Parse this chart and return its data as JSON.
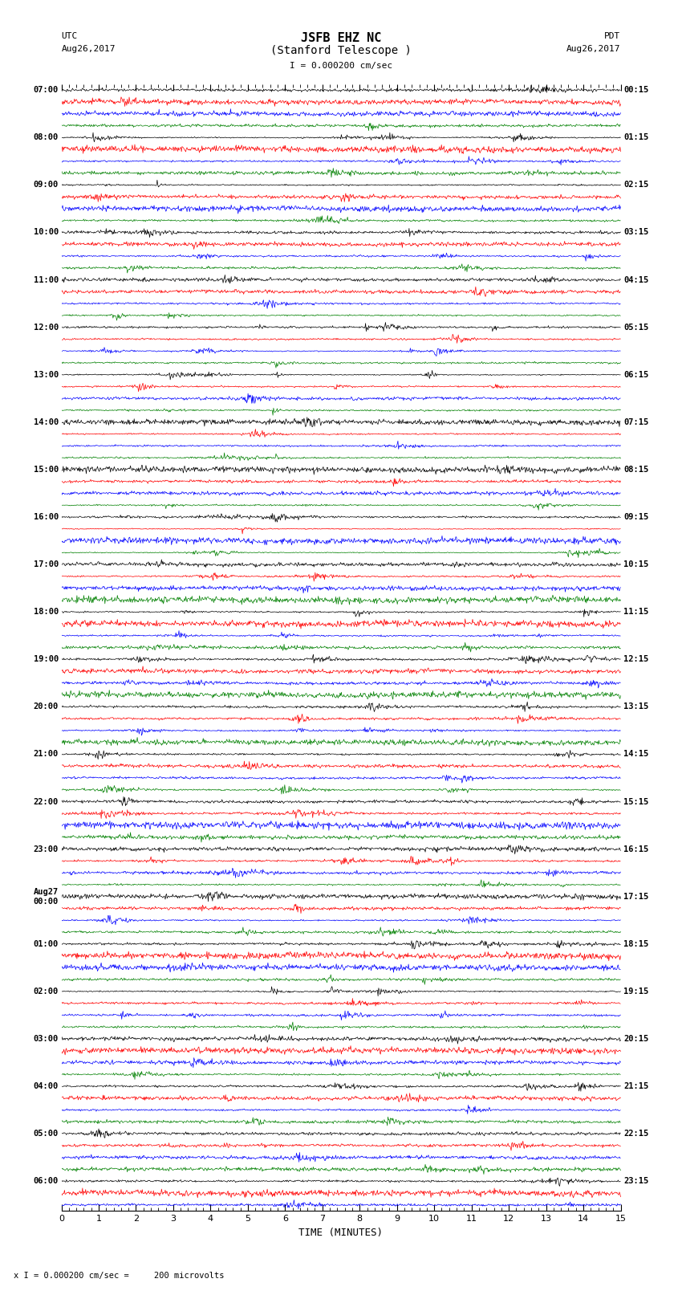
{
  "title_line1": "JSFB EHZ NC",
  "title_line2": "(Stanford Telescope )",
  "scale_label": "I = 0.000200 cm/sec",
  "left_header_line1": "UTC",
  "left_header_line2": "Aug26,2017",
  "right_header_line1": "PDT",
  "right_header_line2": "Aug26,2017",
  "xlabel": "TIME (MINUTES)",
  "bottom_note": "x I = 0.000200 cm/sec =     200 microvolts",
  "xlim": [
    0,
    15
  ],
  "background_color": "#ffffff",
  "trace_colors": [
    "black",
    "red",
    "blue",
    "green"
  ],
  "line_width": 0.5,
  "fig_width": 8.5,
  "fig_height": 16.13,
  "dpi": 100,
  "left_times": [
    "07:00",
    "",
    "",
    "",
    "08:00",
    "",
    "",
    "",
    "09:00",
    "",
    "",
    "",
    "10:00",
    "",
    "",
    "",
    "11:00",
    "",
    "",
    "",
    "12:00",
    "",
    "",
    "",
    "13:00",
    "",
    "",
    "",
    "14:00",
    "",
    "",
    "",
    "15:00",
    "",
    "",
    "",
    "16:00",
    "",
    "",
    "",
    "17:00",
    "",
    "",
    "",
    "18:00",
    "",
    "",
    "",
    "19:00",
    "",
    "",
    "",
    "20:00",
    "",
    "",
    "",
    "21:00",
    "",
    "",
    "",
    "22:00",
    "",
    "",
    "",
    "23:00",
    "",
    "",
    "",
    "Aug27\n00:00",
    "",
    "",
    "",
    "01:00",
    "",
    "",
    "",
    "02:00",
    "",
    "",
    "",
    "03:00",
    "",
    "",
    "",
    "04:00",
    "",
    "",
    "",
    "05:00",
    "",
    "",
    "",
    "06:00",
    "",
    ""
  ],
  "right_times": [
    "00:15",
    "",
    "",
    "",
    "01:15",
    "",
    "",
    "",
    "02:15",
    "",
    "",
    "",
    "03:15",
    "",
    "",
    "",
    "04:15",
    "",
    "",
    "",
    "05:15",
    "",
    "",
    "",
    "06:15",
    "",
    "",
    "",
    "07:15",
    "",
    "",
    "",
    "08:15",
    "",
    "",
    "",
    "09:15",
    "",
    "",
    "",
    "10:15",
    "",
    "",
    "",
    "11:15",
    "",
    "",
    "",
    "12:15",
    "",
    "",
    "",
    "13:15",
    "",
    "",
    "",
    "14:15",
    "",
    "",
    "",
    "15:15",
    "",
    "",
    "",
    "16:15",
    "",
    "",
    "",
    "17:15",
    "",
    "",
    "",
    "18:15",
    "",
    "",
    "",
    "19:15",
    "",
    "",
    "",
    "20:15",
    "",
    "",
    "",
    "21:15",
    "",
    "",
    "",
    "22:15",
    "",
    "",
    "",
    "23:15",
    "",
    ""
  ],
  "n_rows": 95,
  "seed": 42
}
